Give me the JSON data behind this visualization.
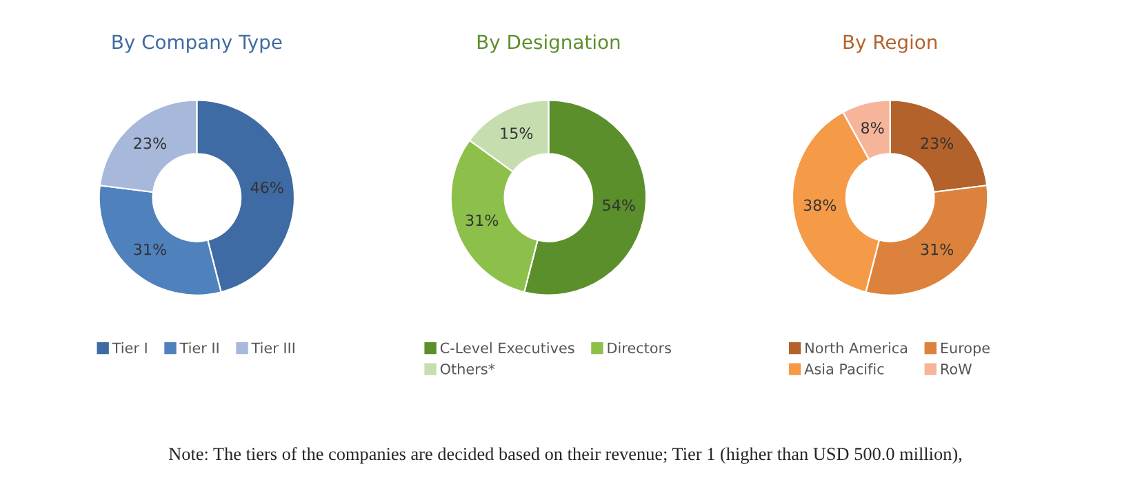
{
  "chart_data": [
    {
      "type": "donut",
      "title": "By Company Type",
      "categories": [
        "Tier I",
        "Tier II",
        "Tier III"
      ],
      "values": [
        46,
        31,
        23
      ],
      "value_labels": [
        "46%",
        "31%",
        "23%"
      ],
      "colors": [
        "#3e6ba3",
        "#4f81bd",
        "#a7b8da"
      ],
      "legend": "bottom"
    },
    {
      "type": "donut",
      "title": "By Designation",
      "categories": [
        "C-Level Executives",
        "Directors",
        "Others*"
      ],
      "values": [
        54,
        31,
        15
      ],
      "value_labels": [
        "54%",
        "31%",
        "15%"
      ],
      "colors": [
        "#5b8f2b",
        "#8dc04a",
        "#c6ddb0"
      ],
      "legend": "bottom"
    },
    {
      "type": "donut",
      "title": "By Region",
      "categories": [
        "North America",
        "Europe",
        "Asia Pacific",
        "RoW"
      ],
      "values": [
        23,
        31,
        38,
        8
      ],
      "value_labels": [
        "23%",
        "31%",
        "38%",
        "8%"
      ],
      "colors": [
        "#b3622b",
        "#dc823c",
        "#f59a46",
        "#f6b59b"
      ],
      "legend": "bottom",
      "annotations": [
        "Note: The tiers of the companies are decided based on their revenue; Tier 1 (higher than USD 500.0 million),"
      ]
    }
  ]
}
